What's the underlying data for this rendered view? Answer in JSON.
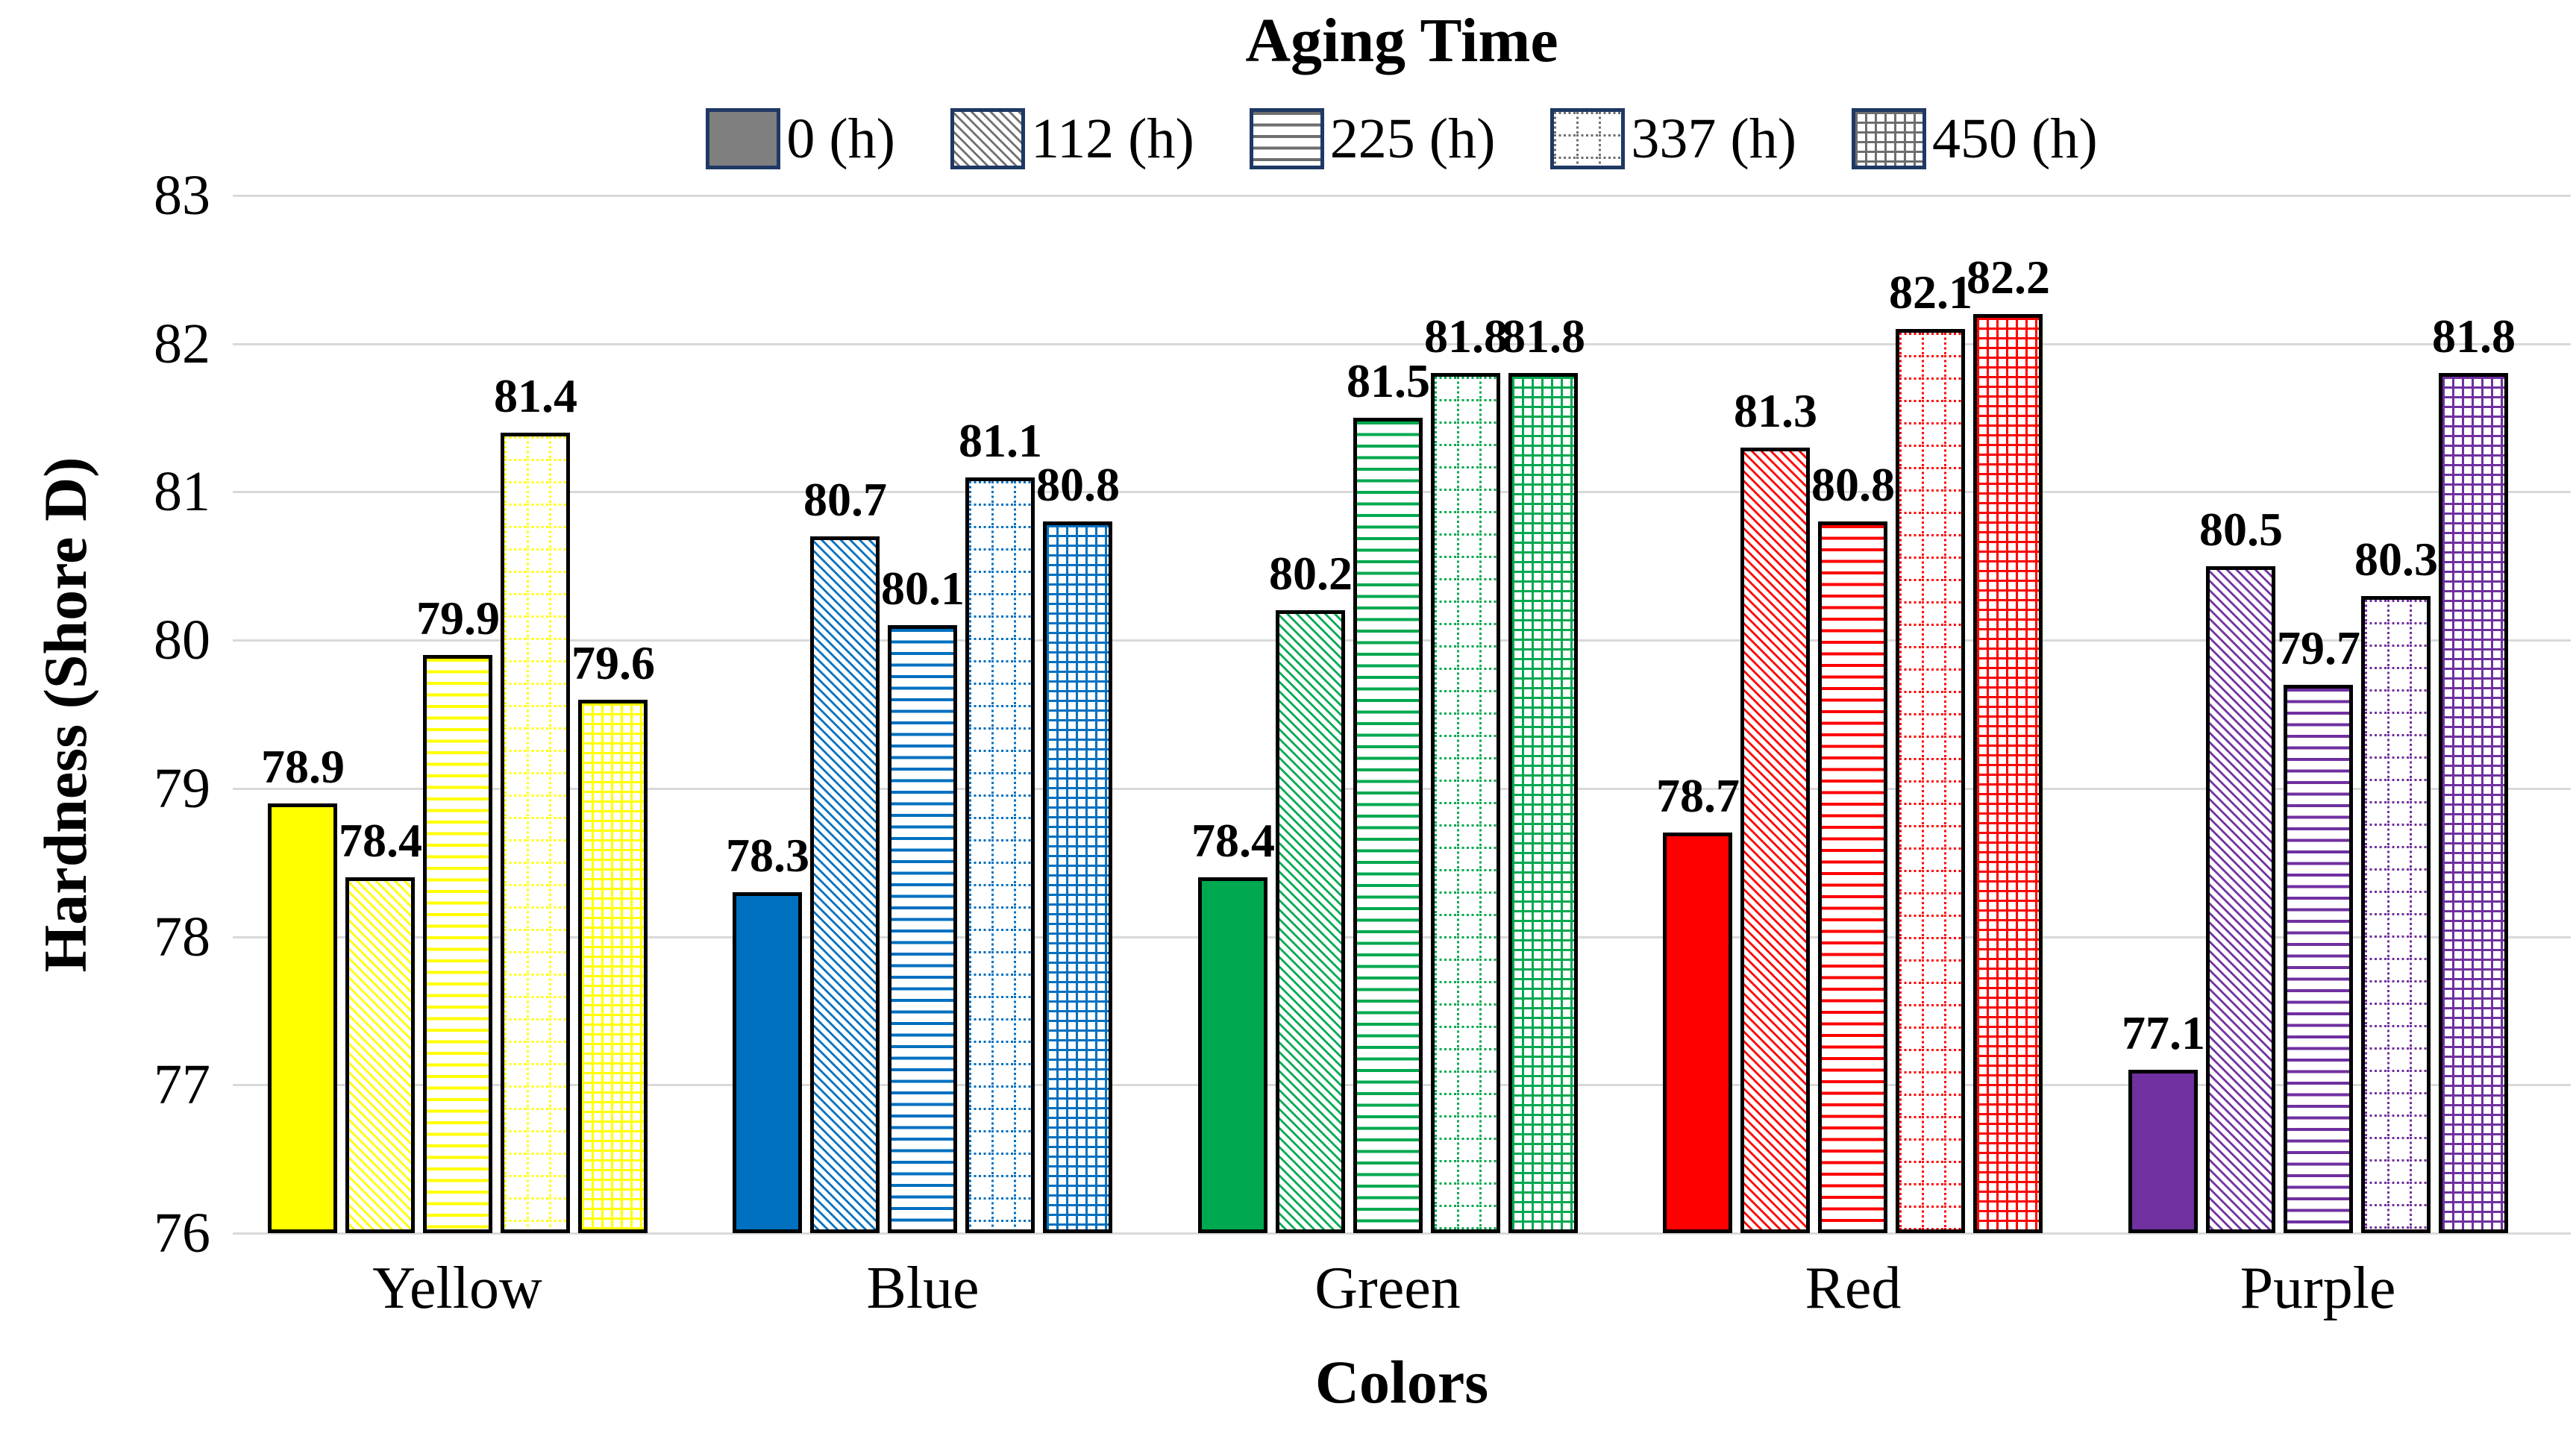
{
  "page": {
    "background": "#FFFFFF"
  },
  "chart_data": {
    "type": "bar",
    "title": "Aging Time",
    "xlabel": "Colors",
    "ylabel": "Hardness (Shore D)",
    "ylim": [
      76,
      83
    ],
    "yticks": [
      83,
      82,
      81,
      80,
      79,
      78,
      77,
      76
    ],
    "categories": [
      "Yellow",
      "Blue",
      "Green",
      "Red",
      "Purple"
    ],
    "series": [
      {
        "name": "0 (h)",
        "pattern": "solid",
        "values": [
          78.9,
          78.3,
          78.4,
          78.7,
          77.1
        ]
      },
      {
        "name": "112 (h)",
        "pattern": "diagonal-stripes",
        "values": [
          78.4,
          80.7,
          80.2,
          81.3,
          80.5
        ]
      },
      {
        "name": "225 (h)",
        "pattern": "horizontal-lines",
        "values": [
          79.9,
          80.1,
          81.5,
          80.8,
          79.7
        ]
      },
      {
        "name": "337 (h)",
        "pattern": "dotted-grid",
        "values": [
          81.4,
          81.1,
          81.8,
          82.1,
          80.3
        ]
      },
      {
        "name": "450 (h)",
        "pattern": "solid-grid",
        "values": [
          79.6,
          80.8,
          81.8,
          82.2,
          81.8
        ]
      }
    ],
    "series_colors_by_category": {
      "Yellow": "#FFFF00",
      "Blue": "#0070C0",
      "Green": "#00A94F",
      "Red": "#FF0000",
      "Purple": "#7030A0"
    },
    "legend": {
      "position": "top",
      "swatch_solid_fill": "#7F7F7F",
      "swatch_border": "#1F3864",
      "pattern_stroke": "#6E6E6E"
    },
    "grid": true,
    "gridline_color": "#D9D9D9",
    "bar_border_color": "#000000",
    "label_color": "#000000"
  }
}
